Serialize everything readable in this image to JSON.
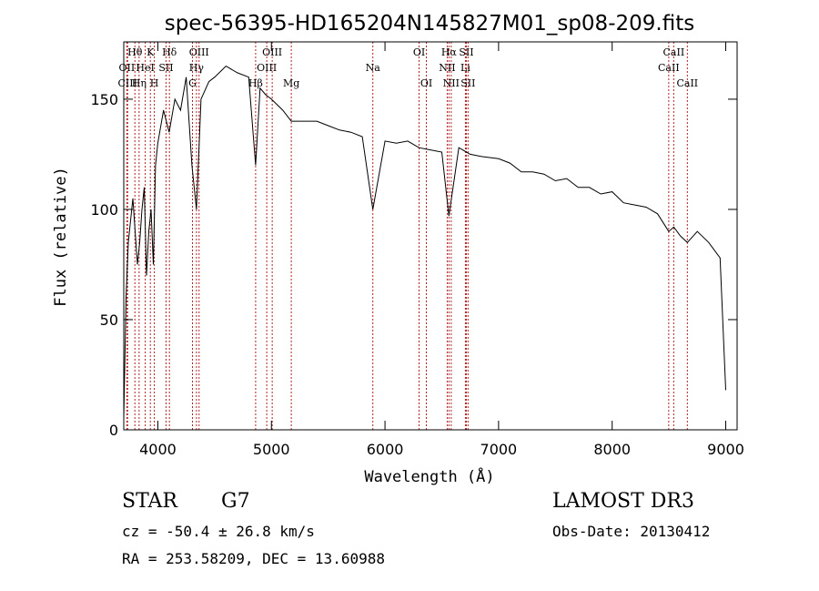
{
  "chart_data": {
    "type": "line",
    "title": "spec-56395-HD165204N145827M01_sp08-209.fits",
    "xlabel": "Wavelength (Å)",
    "ylabel": "Flux (relative)",
    "xlim": [
      3700,
      9100
    ],
    "ylim": [
      0,
      176
    ],
    "xticks": [
      4000,
      5000,
      6000,
      7000,
      8000,
      9000
    ],
    "yticks": [
      0,
      50,
      100,
      150
    ],
    "series": [
      {
        "name": "spectrum",
        "x": [
          3700,
          3720,
          3740,
          3760,
          3780,
          3800,
          3820,
          3840,
          3860,
          3880,
          3900,
          3920,
          3940,
          3960,
          3980,
          4000,
          4050,
          4100,
          4150,
          4200,
          4250,
          4300,
          4340,
          4380,
          4450,
          4500,
          4600,
          4700,
          4800,
          4861,
          4900,
          4950,
          5000,
          5100,
          5175,
          5250,
          5400,
          5500,
          5600,
          5700,
          5800,
          5893,
          6000,
          6100,
          6200,
          6300,
          6400,
          6500,
          6563,
          6650,
          6750,
          6850,
          7000,
          7100,
          7200,
          7300,
          7400,
          7500,
          7600,
          7700,
          7800,
          7900,
          8000,
          8100,
          8200,
          8300,
          8400,
          8498,
          8542,
          8600,
          8662,
          8750,
          8850,
          8950,
          9000
        ],
        "y": [
          5,
          60,
          85,
          95,
          105,
          90,
          75,
          85,
          100,
          110,
          70,
          90,
          100,
          75,
          120,
          130,
          145,
          135,
          150,
          145,
          160,
          120,
          100,
          150,
          158,
          160,
          165,
          162,
          160,
          120,
          155,
          152,
          150,
          145,
          140,
          140,
          140,
          138,
          136,
          135,
          133,
          100,
          131,
          130,
          131,
          128,
          127,
          126,
          97,
          128,
          125,
          124,
          123,
          121,
          117,
          117,
          116,
          113,
          114,
          110,
          110,
          107,
          108,
          103,
          102,
          101,
          98,
          90,
          92,
          88,
          85,
          90,
          85,
          78,
          18
        ]
      }
    ],
    "lines": [
      {
        "label": "Hθ",
        "w": 3798,
        "row": 1
      },
      {
        "label": "OII",
        "w": 3727,
        "row": 2
      },
      {
        "label": "CIII",
        "w": 3734,
        "row": 3
      },
      {
        "label": "Hη",
        "w": 3835,
        "row": 3
      },
      {
        "label": "HeI",
        "w": 3889,
        "row": 2
      },
      {
        "label": "K",
        "w": 3934,
        "row": 1
      },
      {
        "label": "H",
        "w": 3969,
        "row": 3
      },
      {
        "label": "SII",
        "w": 4072,
        "row": 2
      },
      {
        "label": "Hδ",
        "w": 4102,
        "row": 1
      },
      {
        "label": "G",
        "w": 4305,
        "row": 3
      },
      {
        "label": "Hγ",
        "w": 4340,
        "row": 2
      },
      {
        "label": "OIII",
        "w": 4363,
        "row": 1
      },
      {
        "label": "Hβ",
        "w": 4861,
        "row": 3
      },
      {
        "label": "OIII",
        "w": 4959,
        "row": 2
      },
      {
        "label": "OIII",
        "w": 5007,
        "row": 1
      },
      {
        "label": "Mg",
        "w": 5175,
        "row": 3
      },
      {
        "label": "Na",
        "w": 5893,
        "row": 2
      },
      {
        "label": "OI",
        "w": 6300,
        "row": 1
      },
      {
        "label": "OI",
        "w": 6364,
        "row": 3
      },
      {
        "label": "NII",
        "w": 6548,
        "row": 2
      },
      {
        "label": "Hα",
        "w": 6563,
        "row": 1
      },
      {
        "label": "NII",
        "w": 6583,
        "row": 3
      },
      {
        "label": "Li",
        "w": 6708,
        "row": 2
      },
      {
        "label": "SII",
        "w": 6716,
        "row": 1
      },
      {
        "label": "SII",
        "w": 6731,
        "row": 3
      },
      {
        "label": "CaII",
        "w": 8498,
        "row": 2
      },
      {
        "label": "CaII",
        "w": 8542,
        "row": 1
      },
      {
        "label": "CaII",
        "w": 8662,
        "row": 3
      }
    ]
  },
  "info": {
    "object_type": "STAR",
    "subclass": "G7",
    "survey": "LAMOST DR3",
    "cz": "cz = -50.4 ± 26.8 km/s",
    "obs_date": "Obs-Date: 20130412",
    "coords": "RA = 253.58209, DEC =  13.60988"
  },
  "colors": {
    "marker": "#b22222",
    "ink": "#000000"
  }
}
